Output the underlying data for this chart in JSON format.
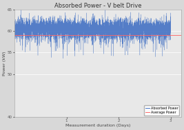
{
  "title": "Absorbed Power - V belt Drive",
  "xlabel": "Measurement duration (Days)",
  "ylabel": "Power (kW)",
  "background_color": "#d8d8d8",
  "plot_bg_color": "#e8e8e8",
  "xlim": [
    0,
    3.2
  ],
  "ylim": [
    40,
    65
  ],
  "yticks": [
    40,
    50,
    55,
    60,
    65
  ],
  "xticks": [
    1,
    2,
    3
  ],
  "noise_mean": 60.5,
  "noise_std": 1.2,
  "avg_power": 59.0,
  "n_points": 5000,
  "line_color": "#4472C4",
  "avg_color": "#FF6666",
  "legend_labels": [
    "Absorbed Power",
    "Average Power"
  ],
  "title_fontsize": 6,
  "label_fontsize": 4.5,
  "tick_fontsize": 4,
  "legend_fontsize": 3.5
}
